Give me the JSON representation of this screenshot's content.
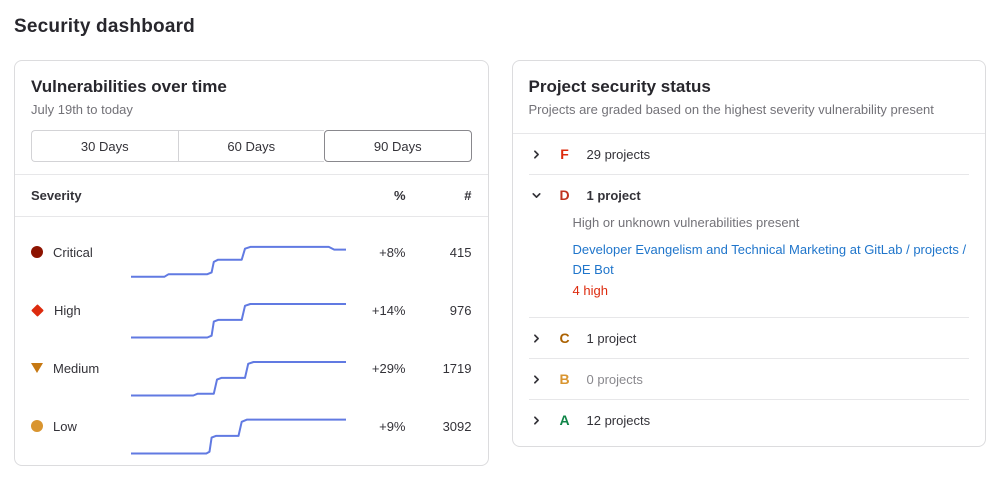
{
  "page": {
    "title": "Security dashboard"
  },
  "vulnerabilities_panel": {
    "title": "Vulnerabilities over time",
    "subtitle": "July 19th to today",
    "range_buttons": [
      {
        "label": "30 Days",
        "selected": false
      },
      {
        "label": "60 Days",
        "selected": false
      },
      {
        "label": "90 Days",
        "selected": true
      }
    ],
    "table": {
      "severity_header": "Severity",
      "percent_header": "%",
      "count_header": "#",
      "spark_color": "#617ae2",
      "rows": [
        {
          "severity": "Critical",
          "icon": "severity-critical-icon",
          "shape": "circle",
          "color": "#8d1300",
          "percent": "+8%",
          "count": "415",
          "spark": [
            [
              0,
              0.86
            ],
            [
              0.155,
              0.86
            ],
            [
              0.175,
              0.8
            ],
            [
              0.355,
              0.8
            ],
            [
              0.375,
              0.76
            ],
            [
              0.385,
              0.52
            ],
            [
              0.405,
              0.47
            ],
            [
              0.515,
              0.47
            ],
            [
              0.53,
              0.22
            ],
            [
              0.555,
              0.18
            ],
            [
              0.92,
              0.18
            ],
            [
              0.945,
              0.24
            ],
            [
              1,
              0.24
            ]
          ]
        },
        {
          "severity": "High",
          "icon": "severity-high-icon",
          "shape": "diamond",
          "color": "#dd2b0e",
          "percent": "+14%",
          "count": "976",
          "spark": [
            [
              0,
              0.92
            ],
            [
              0.355,
              0.92
            ],
            [
              0.375,
              0.88
            ],
            [
              0.385,
              0.56
            ],
            [
              0.405,
              0.52
            ],
            [
              0.515,
              0.52
            ],
            [
              0.53,
              0.2
            ],
            [
              0.555,
              0.16
            ],
            [
              1,
              0.16
            ]
          ]
        },
        {
          "severity": "Medium",
          "icon": "severity-medium-icon",
          "shape": "triangle-down",
          "color": "#c67812",
          "percent": "+29%",
          "count": "1719",
          "spark": [
            [
              0,
              0.92
            ],
            [
              0.29,
              0.92
            ],
            [
              0.31,
              0.88
            ],
            [
              0.385,
              0.88
            ],
            [
              0.4,
              0.56
            ],
            [
              0.42,
              0.52
            ],
            [
              0.53,
              0.52
            ],
            [
              0.545,
              0.2
            ],
            [
              0.57,
              0.16
            ],
            [
              1,
              0.16
            ]
          ]
        },
        {
          "severity": "Low",
          "icon": "severity-low-icon",
          "shape": "circle",
          "color": "#d99530",
          "percent": "+9%",
          "count": "3092",
          "spark": [
            [
              0,
              0.92
            ],
            [
              0.35,
              0.92
            ],
            [
              0.365,
              0.88
            ],
            [
              0.375,
              0.56
            ],
            [
              0.395,
              0.52
            ],
            [
              0.5,
              0.52
            ],
            [
              0.515,
              0.2
            ],
            [
              0.54,
              0.15
            ],
            [
              1,
              0.15
            ]
          ]
        }
      ]
    }
  },
  "project_status_panel": {
    "title": "Project security status",
    "subtitle": "Projects are graded based on the highest severity vulnerability present",
    "groups": [
      {
        "grade": "F",
        "grade_color": "#dd2b0e",
        "label": "29 projects",
        "expanded": false,
        "muted": false
      },
      {
        "grade": "D",
        "grade_color": "#c0321f",
        "label": "1 project",
        "expanded": true,
        "muted": false,
        "description": "High or unknown vulnerabilities present",
        "project_link": "Developer Evangelism and Technical Marketing at GitLab / projects / DE Bot",
        "vuln_summary": "4 high",
        "vuln_color": "#dd2b0e"
      },
      {
        "grade": "C",
        "grade_color": "#ab6100",
        "label": "1 project",
        "expanded": false,
        "muted": false
      },
      {
        "grade": "B",
        "grade_color": "#d99530",
        "label": "0 projects",
        "expanded": false,
        "muted": true
      },
      {
        "grade": "A",
        "grade_color": "#108548",
        "label": "12 projects",
        "expanded": false,
        "muted": false
      }
    ]
  }
}
